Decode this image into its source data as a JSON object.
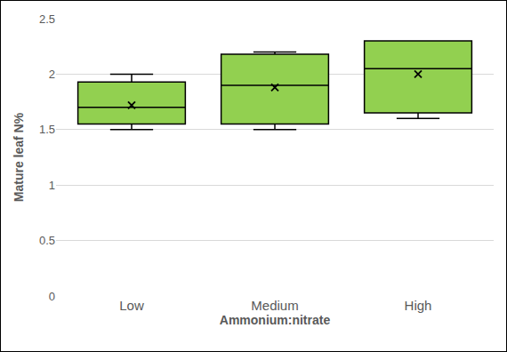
{
  "chart_data": {
    "type": "box",
    "x_label": "Ammonium:nitrate",
    "y_label": "Mature leaf N%",
    "categories": [
      "Low",
      "Medium",
      "High"
    ],
    "min": [
      1.5,
      1.5,
      1.6
    ],
    "q1": [
      1.55,
      1.55,
      1.65
    ],
    "median": [
      1.7,
      1.9,
      2.05
    ],
    "q3": [
      1.93,
      2.18,
      2.3
    ],
    "max": [
      2.0,
      2.2,
      2.3
    ],
    "mean": [
      1.72,
      1.88,
      2.0
    ],
    "color": "#92d050",
    "marker": "x",
    "ylim": [
      0,
      2.5
    ],
    "yticks": [
      0,
      0.5,
      1,
      1.5,
      2,
      2.5
    ],
    "grid": true
  }
}
